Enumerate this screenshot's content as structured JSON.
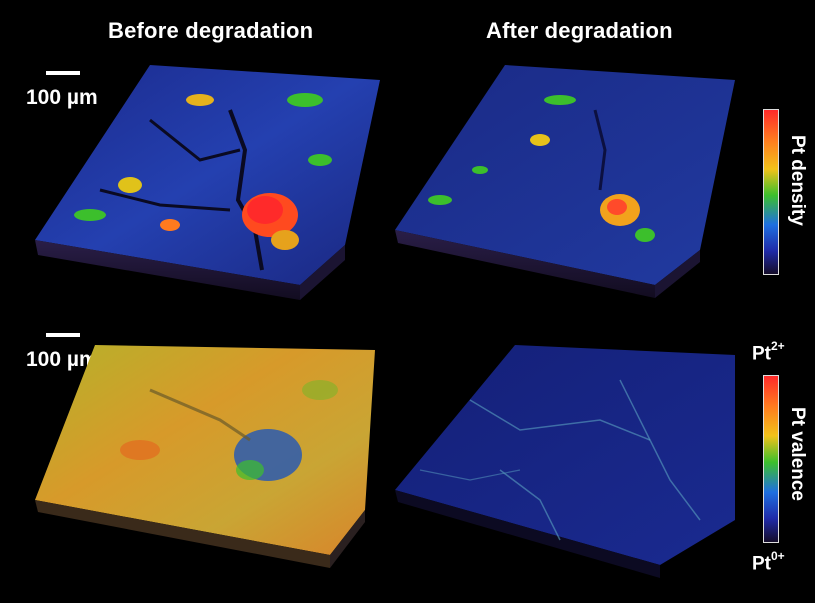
{
  "headers": {
    "before": "Before degradation",
    "after": "After degradation"
  },
  "scalebars": [
    {
      "label": "100 µm"
    },
    {
      "label": "100 µm"
    }
  ],
  "colorbars": {
    "density": {
      "title": "Pt density"
    },
    "valence": {
      "title": "Pt valence",
      "top_base": "Pt",
      "top_sup": "2+",
      "bottom_base": "Pt",
      "bottom_sup": "0+"
    }
  },
  "panels": [
    {
      "id": "density-before",
      "description_icon": "pt-density-map"
    },
    {
      "id": "density-after",
      "description_icon": "pt-density-map"
    },
    {
      "id": "valence-before",
      "description_icon": "pt-valence-map"
    },
    {
      "id": "valence-after",
      "description_icon": "pt-valence-map"
    }
  ],
  "colors": {
    "background": "#000000",
    "high": "#ff2a2a",
    "mid": "#3cbf2c",
    "low": "#1f2aa8"
  }
}
